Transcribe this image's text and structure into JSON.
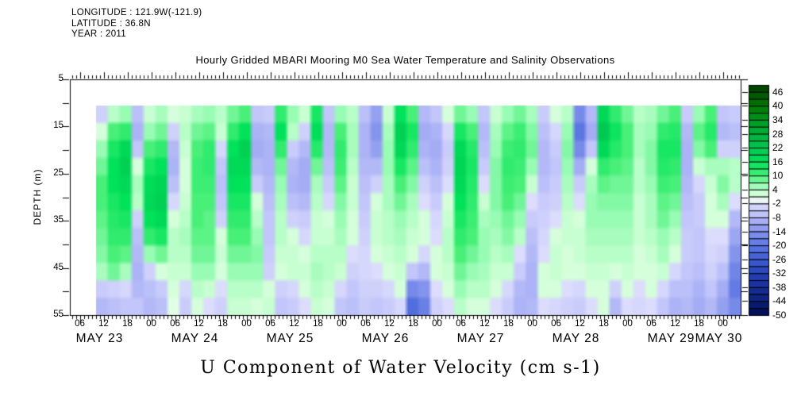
{
  "header": {
    "longitude_line": "LONGITUDE : 121.9W(-121.9)",
    "latitude_line": "LATITUDE : 36.8N",
    "year_line": "YEAR : 2011",
    "title": "Hourly Gridded MBARI Mooring M0 Sea Water Temperature and Salinity Observations"
  },
  "chart_data": {
    "type": "heatmap",
    "title": "Hourly Gridded MBARI Mooring M0 Sea Water Temperature and Salinity Observations",
    "caption": "U Component of Water Velocity (cm s-1)",
    "units": "cm s-1",
    "x_axis": {
      "range_hours_from_may23_00z": [
        3.5,
        172.5
      ],
      "minor_tick_step_hours": 1,
      "major_tick_step_hours": 6,
      "hour_label_start": 6,
      "hour_label_step": 6,
      "hour_labels": [
        "06",
        "12",
        "18",
        "00",
        "06",
        "12",
        "18",
        "00",
        "06",
        "12",
        "18",
        "00",
        "06",
        "12",
        "18",
        "00",
        "06",
        "12",
        "18",
        "00",
        "06",
        "12",
        "18",
        "00",
        "06",
        "12",
        "18",
        "00"
      ],
      "date_labels": [
        {
          "label": "MAY 23",
          "t": 11
        },
        {
          "label": "MAY 24",
          "t": 35
        },
        {
          "label": "MAY 25",
          "t": 59
        },
        {
          "label": "MAY 26",
          "t": 83
        },
        {
          "label": "MAY 27",
          "t": 107
        },
        {
          "label": "MAY 28",
          "t": 131
        },
        {
          "label": "MAY 29",
          "t": 155
        },
        {
          "label": "MAY 30",
          "t": 167
        }
      ]
    },
    "y_axis": {
      "title": "DEPTH (m)",
      "range": [
        5,
        55
      ],
      "tick_step": 5,
      "labeled_ticks": [
        5,
        15,
        25,
        35,
        45,
        55
      ]
    },
    "colorbar": {
      "vmax": 49,
      "vmin": -50,
      "box_step": 3,
      "labels": [
        46,
        40,
        34,
        28,
        22,
        16,
        10,
        4,
        -2,
        -8,
        -14,
        -20,
        -26,
        -32,
        -38,
        -44,
        -50
      ]
    },
    "color_scale": [
      [
        49,
        "#003c00"
      ],
      [
        40,
        "#007800"
      ],
      [
        30,
        "#00aa32"
      ],
      [
        22,
        "#00c850"
      ],
      [
        16,
        "#00e25a"
      ],
      [
        10,
        "#48f078"
      ],
      [
        6,
        "#98fcb4"
      ],
      [
        3,
        "#c8ffd2"
      ],
      [
        0,
        "#eeffee"
      ],
      [
        -2,
        "#dcdcfc"
      ],
      [
        -6,
        "#c2c6fa"
      ],
      [
        -10,
        "#a4acf4"
      ],
      [
        -14,
        "#8494ec"
      ],
      [
        -20,
        "#5c76e2"
      ],
      [
        -26,
        "#3e5cd4"
      ],
      [
        -32,
        "#2642b6"
      ],
      [
        -38,
        "#162e98"
      ],
      [
        -44,
        "#0c2078"
      ],
      [
        -50,
        "#000a50"
      ]
    ],
    "grid": {
      "t_start": 11.5,
      "t_step": 3,
      "t_draw_range": [
        10,
        172.5
      ],
      "depth_range": [
        10.5,
        55
      ],
      "depth_rows": [
        11,
        15,
        19,
        23,
        27,
        31,
        35,
        39,
        43,
        47,
        51,
        54
      ],
      "columns": [
        [
          -4,
          2,
          6,
          8,
          10,
          10,
          9,
          8,
          7,
          5,
          -5,
          -8
        ],
        [
          4,
          10,
          14,
          16,
          16,
          14,
          13,
          12,
          10,
          8,
          -4,
          -7
        ],
        [
          6,
          12,
          18,
          20,
          18,
          16,
          14,
          12,
          9,
          5,
          -3,
          -6
        ],
        [
          -7,
          -9,
          -6,
          2,
          5,
          4,
          -4,
          -7,
          -8,
          -9,
          -8,
          -6
        ],
        [
          3,
          6,
          10,
          14,
          17,
          18,
          16,
          12,
          6,
          -4,
          -7,
          -8
        ],
        [
          5,
          8,
          12,
          16,
          19,
          20,
          18,
          14,
          8,
          2,
          -5,
          -7
        ],
        [
          2,
          -4,
          -8,
          -9,
          -7,
          -3,
          2,
          4,
          4,
          3,
          2,
          1
        ],
        [
          3,
          4,
          3,
          2,
          2,
          3,
          4,
          5,
          4,
          3,
          -3,
          -5
        ],
        [
          5,
          8,
          10,
          11,
          11,
          10,
          10,
          9,
          8,
          6,
          4,
          2
        ],
        [
          6,
          9,
          12,
          12,
          11,
          10,
          9,
          9,
          8,
          6,
          3,
          -2
        ],
        [
          4,
          3,
          -3,
          -6,
          -7,
          -6,
          -4,
          2,
          3,
          2,
          -2,
          -4
        ],
        [
          8,
          12,
          16,
          18,
          16,
          14,
          12,
          10,
          8,
          6,
          4,
          3
        ],
        [
          10,
          16,
          20,
          18,
          16,
          14,
          12,
          10,
          8,
          6,
          4,
          3
        ],
        [
          -6,
          -9,
          -10,
          -8,
          -5,
          2,
          4,
          6,
          7,
          6,
          4,
          2
        ],
        [
          -5,
          -8,
          -9,
          -9,
          -8,
          -7,
          -6,
          -6,
          -5,
          -4,
          2,
          3
        ],
        [
          12,
          16,
          12,
          8,
          6,
          5,
          4,
          4,
          3,
          2,
          -4,
          -6
        ],
        [
          6,
          4,
          -5,
          -8,
          -9,
          -7,
          -4,
          2,
          3,
          3,
          -3,
          -5
        ],
        [
          3,
          -4,
          -8,
          -10,
          -10,
          -8,
          -5,
          -3,
          2,
          3,
          2,
          -2
        ],
        [
          14,
          17,
          13,
          8,
          5,
          4,
          3,
          3,
          4,
          5,
          4,
          3
        ],
        [
          -6,
          -8,
          -8,
          -7,
          -5,
          -3,
          2,
          3,
          4,
          4,
          3,
          2
        ],
        [
          6,
          10,
          12,
          11,
          9,
          7,
          6,
          5,
          4,
          3,
          -3,
          -6
        ],
        [
          4,
          5,
          5,
          4,
          3,
          3,
          2,
          2,
          -2,
          -4,
          -6,
          -7
        ],
        [
          -7,
          -9,
          -9,
          -8,
          -7,
          -6,
          -5,
          -4,
          -3,
          -3,
          -4,
          -5
        ],
        [
          -12,
          -14,
          -12,
          -8,
          -4,
          2,
          3,
          3,
          2,
          -2,
          -4,
          -6
        ],
        [
          3,
          5,
          6,
          6,
          5,
          5,
          4,
          4,
          3,
          2,
          -3,
          -5
        ],
        [
          16,
          20,
          18,
          14,
          10,
          8,
          6,
          5,
          4,
          3,
          2,
          -3
        ],
        [
          10,
          14,
          12,
          9,
          7,
          5,
          4,
          3,
          2,
          -6,
          -16,
          -22
        ],
        [
          -8,
          -10,
          -9,
          -7,
          -4,
          -2,
          2,
          2,
          -3,
          -8,
          -14,
          -18
        ],
        [
          -6,
          -9,
          -10,
          -9,
          -7,
          -5,
          -3,
          -2,
          2,
          2,
          -2,
          -4
        ],
        [
          2,
          -3,
          -5,
          -4,
          -2,
          2,
          3,
          4,
          4,
          3,
          2,
          -2
        ],
        [
          8,
          14,
          18,
          19,
          18,
          16,
          14,
          12,
          10,
          8,
          6,
          4
        ],
        [
          6,
          10,
          13,
          14,
          13,
          12,
          11,
          10,
          8,
          6,
          4,
          2
        ],
        [
          -6,
          -8,
          -7,
          -5,
          -2,
          3,
          5,
          6,
          6,
          5,
          4,
          2
        ],
        [
          3,
          5,
          6,
          7,
          7,
          7,
          6,
          5,
          4,
          3,
          2,
          -2
        ],
        [
          6,
          9,
          11,
          12,
          11,
          10,
          8,
          7,
          5,
          3,
          -3,
          -5
        ],
        [
          8,
          11,
          12,
          11,
          10,
          8,
          6,
          4,
          -2,
          -5,
          -8,
          -9
        ],
        [
          5,
          7,
          8,
          6,
          3,
          -2,
          -5,
          -7,
          -8,
          -9,
          -9,
          -8
        ],
        [
          -5,
          -7,
          -8,
          -8,
          -7,
          -5,
          -4,
          -3,
          -2,
          2,
          2,
          -2
        ],
        [
          2,
          -3,
          -5,
          -6,
          -5,
          -4,
          -2,
          2,
          3,
          3,
          2,
          -3
        ],
        [
          4,
          6,
          7,
          6,
          5,
          4,
          3,
          3,
          2,
          2,
          -2,
          -4
        ],
        [
          -16,
          -20,
          -16,
          -10,
          -5,
          -2,
          2,
          3,
          3,
          2,
          -3,
          -5
        ],
        [
          -8,
          -10,
          -6,
          2,
          5,
          6,
          6,
          5,
          4,
          3,
          2,
          -2
        ],
        [
          18,
          22,
          18,
          12,
          9,
          7,
          6,
          5,
          4,
          3,
          2,
          2
        ],
        [
          12,
          15,
          13,
          10,
          8,
          7,
          6,
          5,
          4,
          2,
          -4,
          -8
        ],
        [
          8,
          10,
          10,
          9,
          8,
          7,
          6,
          5,
          4,
          3,
          2,
          -2
        ],
        [
          4,
          5,
          5,
          4,
          4,
          3,
          3,
          3,
          2,
          2,
          -2,
          -3
        ],
        [
          5,
          6,
          7,
          7,
          6,
          5,
          5,
          4,
          3,
          2,
          2,
          -2
        ],
        [
          8,
          12,
          14,
          13,
          11,
          9,
          8,
          6,
          5,
          3,
          -3,
          -6
        ],
        [
          10,
          13,
          14,
          12,
          10,
          8,
          6,
          4,
          2,
          -3,
          -7,
          -9
        ],
        [
          -5,
          -8,
          -9,
          -9,
          -8,
          -7,
          -6,
          -5,
          -5,
          -6,
          -7,
          -8
        ],
        [
          6,
          9,
          7,
          3,
          -3,
          -5,
          -5,
          -6,
          -6,
          -7,
          -9,
          -10
        ],
        [
          10,
          13,
          10,
          5,
          3,
          2,
          2,
          -2,
          -3,
          -4,
          -6,
          -8
        ],
        [
          -6,
          -8,
          -4,
          5,
          7,
          5,
          2,
          -2,
          -4,
          -7,
          -10,
          -12
        ],
        [
          -5,
          -7,
          -4,
          4,
          4,
          -2,
          -8,
          -11,
          -14,
          -17,
          -19,
          -16
        ]
      ]
    }
  }
}
